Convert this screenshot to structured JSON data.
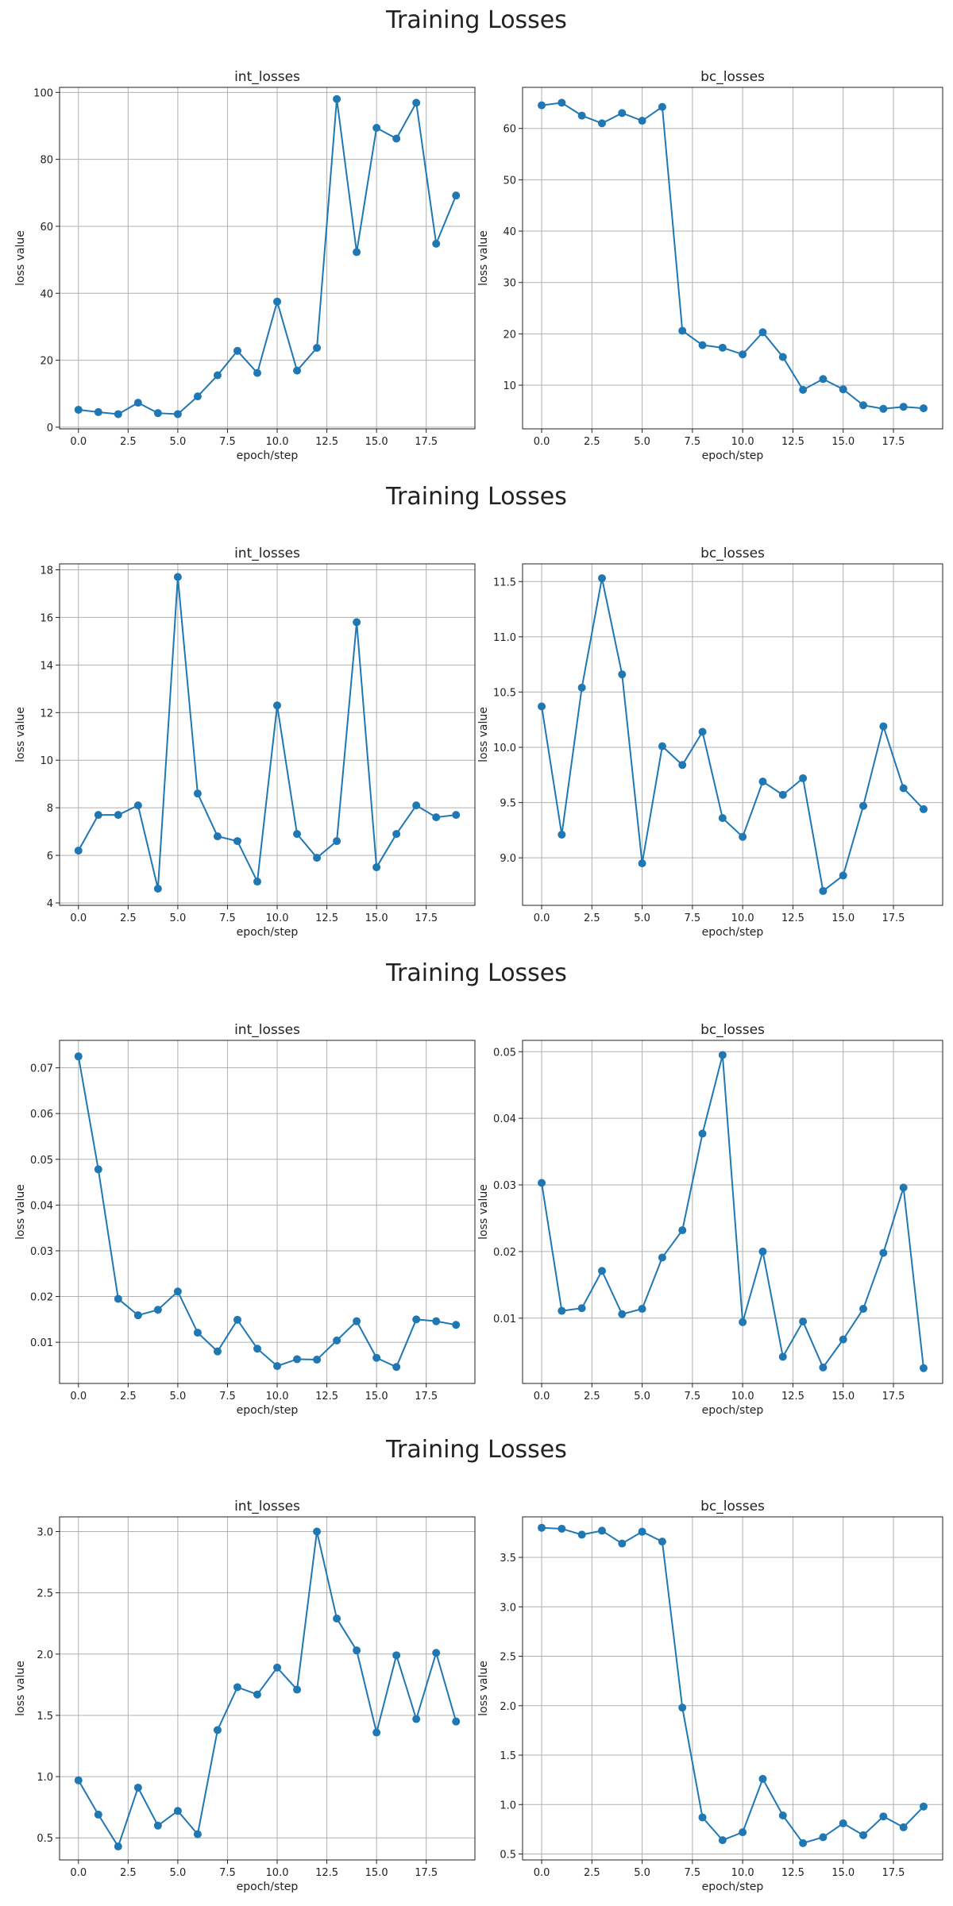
{
  "colors": {
    "series": "#1f77b4",
    "grid": "#b0b0b0",
    "text": "#222222",
    "background": "#ffffff"
  },
  "chart_data": [
    {
      "type": "line",
      "figure_title": "Training Losses",
      "title": "int_losses",
      "xlabel": "epoch/step",
      "ylabel": "loss value",
      "xlim": [
        -0.95,
        19.95
      ],
      "ylim": [
        -0.5,
        101.5
      ],
      "xticks": [
        0,
        2.5,
        5,
        7.5,
        10,
        12.5,
        15,
        17.5
      ],
      "xtick_labels": [
        "0.0",
        "2.5",
        "5.0",
        "7.5",
        "10.0",
        "12.5",
        "15.0",
        "17.5"
      ],
      "yticks": [
        0,
        20,
        40,
        60,
        80,
        100
      ],
      "ytick_labels": [
        "0",
        "20",
        "40",
        "60",
        "80",
        "100"
      ],
      "grid": true,
      "marker": "circle",
      "x": [
        0,
        1,
        2,
        3,
        4,
        5,
        6,
        7,
        8,
        9,
        10,
        11,
        12,
        13,
        14,
        15,
        16,
        17,
        18,
        19
      ],
      "values": [
        5.2,
        4.5,
        3.9,
        7.3,
        4.2,
        3.9,
        9.2,
        15.5,
        22.8,
        16.2,
        37.5,
        16.9,
        23.7,
        98.0,
        52.3,
        89.4,
        86.2,
        96.9,
        54.8,
        69.2
      ]
    },
    {
      "type": "line",
      "figure_title": "",
      "title": "bc_losses",
      "xlabel": "epoch/step",
      "ylabel": "loss value",
      "xlim": [
        -0.95,
        19.95
      ],
      "ylim": [
        1.5,
        68
      ],
      "xticks": [
        0,
        2.5,
        5,
        7.5,
        10,
        12.5,
        15,
        17.5
      ],
      "xtick_labels": [
        "0.0",
        "2.5",
        "5.0",
        "7.5",
        "10.0",
        "12.5",
        "15.0",
        "17.5"
      ],
      "yticks": [
        10,
        20,
        30,
        40,
        50,
        60
      ],
      "ytick_labels": [
        "10",
        "20",
        "30",
        "40",
        "50",
        "60"
      ],
      "grid": true,
      "marker": "circle",
      "x": [
        0,
        1,
        2,
        3,
        4,
        5,
        6,
        7,
        8,
        9,
        10,
        11,
        12,
        13,
        14,
        15,
        16,
        17,
        18,
        19
      ],
      "values": [
        64.5,
        65.0,
        62.5,
        61.0,
        63.0,
        61.5,
        64.2,
        20.6,
        17.8,
        17.3,
        16.0,
        20.3,
        15.5,
        9.1,
        11.2,
        9.2,
        6.1,
        5.4,
        5.8,
        5.5
      ]
    },
    {
      "type": "line",
      "figure_title": "Training Losses",
      "title": "int_losses",
      "xlabel": "epoch/step",
      "ylabel": "loss value",
      "xlim": [
        -0.95,
        19.95
      ],
      "ylim": [
        3.9,
        18.25
      ],
      "xticks": [
        0,
        2.5,
        5,
        7.5,
        10,
        12.5,
        15,
        17.5
      ],
      "xtick_labels": [
        "0.0",
        "2.5",
        "5.0",
        "7.5",
        "10.0",
        "12.5",
        "15.0",
        "17.5"
      ],
      "yticks": [
        4,
        6,
        8,
        10,
        12,
        14,
        16,
        18
      ],
      "ytick_labels": [
        "4",
        "6",
        "8",
        "10",
        "12",
        "14",
        "16",
        "18"
      ],
      "grid": true,
      "marker": "circle",
      "x": [
        0,
        1,
        2,
        3,
        4,
        5,
        6,
        7,
        8,
        9,
        10,
        11,
        12,
        13,
        14,
        15,
        16,
        17,
        18,
        19
      ],
      "values": [
        6.2,
        7.7,
        7.7,
        8.1,
        4.6,
        17.7,
        8.6,
        6.8,
        6.6,
        4.9,
        12.3,
        6.9,
        5.9,
        6.6,
        15.8,
        5.5,
        6.9,
        8.1,
        7.6,
        7.7
      ]
    },
    {
      "type": "line",
      "figure_title": "",
      "title": "bc_losses",
      "xlabel": "epoch/step",
      "ylabel": "loss value",
      "xlim": [
        -0.95,
        19.95
      ],
      "ylim": [
        8.57,
        11.66
      ],
      "xticks": [
        0,
        2.5,
        5,
        7.5,
        10,
        12.5,
        15,
        17.5
      ],
      "xtick_labels": [
        "0.0",
        "2.5",
        "5.0",
        "7.5",
        "10.0",
        "12.5",
        "15.0",
        "17.5"
      ],
      "yticks": [
        9.0,
        9.5,
        10.0,
        10.5,
        11.0,
        11.5
      ],
      "ytick_labels": [
        "9.0",
        "9.5",
        "10.0",
        "10.5",
        "11.0",
        "11.5"
      ],
      "grid": true,
      "marker": "circle",
      "x": [
        0,
        1,
        2,
        3,
        4,
        5,
        6,
        7,
        8,
        9,
        10,
        11,
        12,
        13,
        14,
        15,
        16,
        17,
        18,
        19
      ],
      "values": [
        10.37,
        9.21,
        10.54,
        11.53,
        10.66,
        8.95,
        10.01,
        9.84,
        10.14,
        9.36,
        9.19,
        9.69,
        9.57,
        9.72,
        8.7,
        8.84,
        9.47,
        10.19,
        9.63,
        9.44
      ]
    },
    {
      "type": "line",
      "figure_title": "Training Losses",
      "title": "int_losses",
      "xlabel": "epoch/step",
      "ylabel": "loss value",
      "xlim": [
        -0.95,
        19.95
      ],
      "ylim": [
        0.001,
        0.076
      ],
      "xticks": [
        0,
        2.5,
        5,
        7.5,
        10,
        12.5,
        15,
        17.5
      ],
      "xtick_labels": [
        "0.0",
        "2.5",
        "5.0",
        "7.5",
        "10.0",
        "12.5",
        "15.0",
        "17.5"
      ],
      "yticks": [
        0.01,
        0.02,
        0.03,
        0.04,
        0.05,
        0.06,
        0.07
      ],
      "ytick_labels": [
        "0.01",
        "0.02",
        "0.03",
        "0.04",
        "0.05",
        "0.06",
        "0.07"
      ],
      "grid": true,
      "marker": "circle",
      "x": [
        0,
        1,
        2,
        3,
        4,
        5,
        6,
        7,
        8,
        9,
        10,
        11,
        12,
        13,
        14,
        15,
        16,
        17,
        18,
        19
      ],
      "values": [
        0.0725,
        0.0478,
        0.0195,
        0.0159,
        0.0171,
        0.0211,
        0.0121,
        0.008,
        0.0149,
        0.0086,
        0.0048,
        0.0063,
        0.0062,
        0.0104,
        0.0146,
        0.0066,
        0.0046,
        0.015,
        0.0146,
        0.0138
      ]
    },
    {
      "type": "line",
      "figure_title": "",
      "title": "bc_losses",
      "xlabel": "epoch/step",
      "ylabel": "loss value",
      "xlim": [
        -0.95,
        19.95
      ],
      "ylim": [
        0.0002,
        0.0517
      ],
      "xticks": [
        0,
        2.5,
        5,
        7.5,
        10,
        12.5,
        15,
        17.5
      ],
      "xtick_labels": [
        "0.0",
        "2.5",
        "5.0",
        "7.5",
        "10.0",
        "12.5",
        "15.0",
        "17.5"
      ],
      "yticks": [
        0.01,
        0.02,
        0.03,
        0.04,
        0.05
      ],
      "ytick_labels": [
        "0.01",
        "0.02",
        "0.03",
        "0.04",
        "0.05"
      ],
      "grid": true,
      "marker": "circle",
      "x": [
        0,
        1,
        2,
        3,
        4,
        5,
        6,
        7,
        8,
        9,
        10,
        11,
        12,
        13,
        14,
        15,
        16,
        17,
        18,
        19
      ],
      "values": [
        0.0303,
        0.0111,
        0.0115,
        0.0171,
        0.0106,
        0.0114,
        0.0191,
        0.0232,
        0.0377,
        0.0495,
        0.0094,
        0.02,
        0.0042,
        0.0095,
        0.0026,
        0.0068,
        0.0114,
        0.0198,
        0.0296,
        0.0025
      ]
    },
    {
      "type": "line",
      "figure_title": "Training Losses",
      "title": "int_losses",
      "xlabel": "epoch/step",
      "ylabel": "loss value",
      "xlim": [
        -0.95,
        19.95
      ],
      "ylim": [
        0.32,
        3.12
      ],
      "xticks": [
        0,
        2.5,
        5,
        7.5,
        10,
        12.5,
        15,
        17.5
      ],
      "xtick_labels": [
        "0.0",
        "2.5",
        "5.0",
        "7.5",
        "10.0",
        "12.5",
        "15.0",
        "17.5"
      ],
      "yticks": [
        0.5,
        1.0,
        1.5,
        2.0,
        2.5,
        3.0
      ],
      "ytick_labels": [
        "0.5",
        "1.0",
        "1.5",
        "2.0",
        "2.5",
        "3.0"
      ],
      "grid": true,
      "marker": "circle",
      "x": [
        0,
        1,
        2,
        3,
        4,
        5,
        6,
        7,
        8,
        9,
        10,
        11,
        12,
        13,
        14,
        15,
        16,
        17,
        18,
        19
      ],
      "values": [
        0.97,
        0.69,
        0.43,
        0.91,
        0.6,
        0.72,
        0.53,
        1.38,
        1.73,
        1.67,
        1.89,
        1.71,
        3.0,
        2.29,
        2.03,
        1.36,
        1.99,
        1.47,
        2.01,
        1.45
      ]
    },
    {
      "type": "line",
      "figure_title": "",
      "title": "bc_losses",
      "xlabel": "epoch/step",
      "ylabel": "loss value",
      "xlim": [
        -0.95,
        19.95
      ],
      "ylim": [
        0.44,
        3.91
      ],
      "xticks": [
        0,
        2.5,
        5,
        7.5,
        10,
        12.5,
        15,
        17.5
      ],
      "xtick_labels": [
        "0.0",
        "2.5",
        "5.0",
        "7.5",
        "10.0",
        "12.5",
        "15.0",
        "17.5"
      ],
      "yticks": [
        0.5,
        1.0,
        1.5,
        2.0,
        2.5,
        3.0,
        3.5
      ],
      "ytick_labels": [
        "0.5",
        "1.0",
        "1.5",
        "2.0",
        "2.5",
        "3.0",
        "3.5"
      ],
      "grid": true,
      "marker": "circle",
      "x": [
        0,
        1,
        2,
        3,
        4,
        5,
        6,
        7,
        8,
        9,
        10,
        11,
        12,
        13,
        14,
        15,
        16,
        17,
        18,
        19
      ],
      "values": [
        3.8,
        3.79,
        3.73,
        3.77,
        3.64,
        3.76,
        3.66,
        1.98,
        0.87,
        0.64,
        0.72,
        1.26,
        0.89,
        0.61,
        0.67,
        0.81,
        0.69,
        0.88,
        0.77,
        0.98
      ]
    }
  ]
}
